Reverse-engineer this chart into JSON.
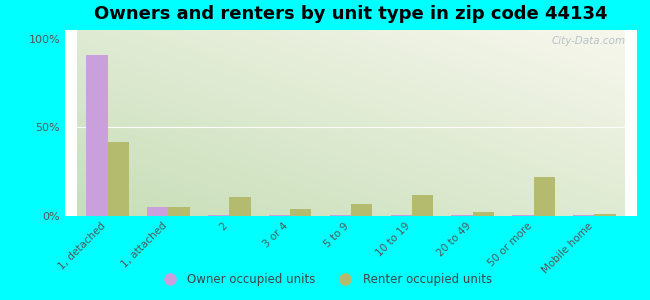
{
  "title": "Owners and renters by unit type in zip code 44134",
  "categories": [
    "1, detached",
    "1, attached",
    "2",
    "3 or 4",
    "5 to 9",
    "10 to 19",
    "20 to 49",
    "50 or more",
    "Mobile home"
  ],
  "owner_values": [
    91,
    5,
    0.3,
    0.3,
    0.3,
    0.3,
    0.3,
    0.3,
    0.3
  ],
  "renter_values": [
    42,
    5,
    11,
    4,
    7,
    12,
    2,
    22,
    1
  ],
  "owner_color": "#c9a0dc",
  "renter_color": "#b5bb6e",
  "background_color": "#00ffff",
  "ylabel_ticks": [
    "0%",
    "50%",
    "100%"
  ],
  "ytick_vals": [
    0,
    50,
    100
  ],
  "ylim": [
    0,
    105
  ],
  "bar_width": 0.35,
  "legend_owner": "Owner occupied units",
  "legend_renter": "Renter occupied units",
  "title_fontsize": 13,
  "tick_fontsize": 7.5,
  "watermark": "City-Data.com",
  "plot_left_color": "#b8d8b8",
  "plot_right_color": "#f0f5e8",
  "plot_top_color": "#e8f0e0",
  "plot_bottom_color": "#d4e8c8"
}
